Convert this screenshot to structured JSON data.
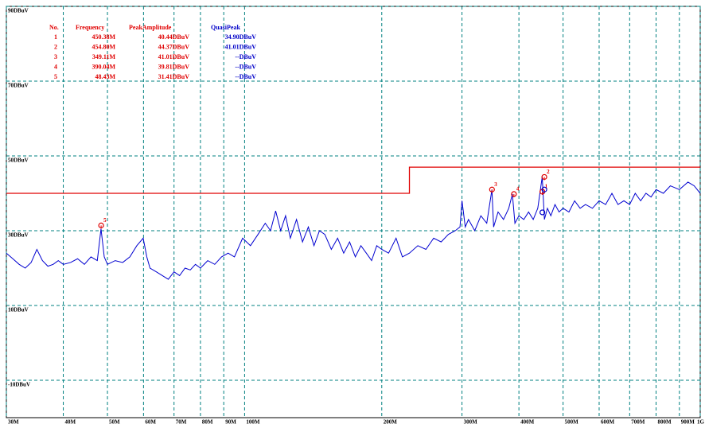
{
  "chart_data": {
    "type": "line",
    "xscale": "log",
    "xlim": [
      30,
      1000
    ],
    "ylim": [
      -20,
      90
    ],
    "xticks": [
      {
        "value": 30,
        "label": "30M"
      },
      {
        "value": 40,
        "label": "40M"
      },
      {
        "value": 50,
        "label": "50M"
      },
      {
        "value": 60,
        "label": "60M"
      },
      {
        "value": 70,
        "label": "70M"
      },
      {
        "value": 80,
        "label": "80M"
      },
      {
        "value": 90,
        "label": "90M"
      },
      {
        "value": 100,
        "label": "100M"
      },
      {
        "value": 200,
        "label": "200M"
      },
      {
        "value": 300,
        "label": "300M"
      },
      {
        "value": 400,
        "label": "400M"
      },
      {
        "value": 500,
        "label": "500M"
      },
      {
        "value": 600,
        "label": "600M"
      },
      {
        "value": 700,
        "label": "700M"
      },
      {
        "value": 800,
        "label": "800M"
      },
      {
        "value": 900,
        "label": "900M"
      },
      {
        "value": 1000,
        "label": "1G"
      }
    ],
    "yticks": [
      {
        "value": 90,
        "label": "90DBuV"
      },
      {
        "value": 70,
        "label": "70DBuV"
      },
      {
        "value": 50,
        "label": "50DBuV"
      },
      {
        "value": 30,
        "label": "30DBuV"
      },
      {
        "value": 10,
        "label": "10DBuV"
      },
      {
        "value": -10,
        "label": "-10DBuV"
      }
    ],
    "grid": true,
    "grid_color": "#008080",
    "limit": {
      "color": "#e00000",
      "x": [
        30,
        230,
        230,
        1000
      ],
      "values": [
        40,
        40,
        47,
        47
      ]
    },
    "series": [
      {
        "color": "#0000d0",
        "x": [
          30,
          31,
          32,
          33,
          34,
          35,
          36,
          37,
          38,
          39,
          40,
          41.5,
          43,
          44.5,
          46,
          47.5,
          48.4,
          49.2,
          50,
          52,
          54,
          56,
          58,
          59.9,
          61,
          62,
          64,
          66,
          68,
          70,
          72,
          74,
          76,
          78,
          80,
          83,
          86,
          89,
          92,
          95,
          99,
          103,
          107,
          111,
          114,
          117,
          120,
          123,
          126,
          130,
          134,
          138,
          142,
          146,
          150,
          155,
          160,
          165,
          170,
          175,
          180,
          185,
          190,
          195,
          200,
          207,
          215,
          222,
          230,
          240,
          250,
          260,
          270,
          280,
          290,
          297,
          300,
          305,
          310,
          320,
          330,
          340,
          349,
          352,
          360,
          370,
          380,
          387,
          392,
          400,
          410,
          420,
          430,
          440,
          450,
          455,
          462,
          470,
          480,
          490,
          500,
          515,
          530,
          545,
          560,
          580,
          600,
          620,
          640,
          660,
          680,
          700,
          720,
          740,
          760,
          780,
          800,
          830,
          860,
          900,
          940,
          970,
          1000
        ],
        "values": [
          24,
          22.5,
          21,
          20,
          21.5,
          25,
          22,
          20.5,
          21,
          22,
          21,
          21.5,
          22.5,
          21,
          23,
          22,
          30.5,
          23,
          21,
          22,
          21.5,
          23,
          26,
          28,
          23,
          20,
          19,
          18,
          17,
          19,
          18,
          20,
          19.5,
          21,
          20,
          22,
          21,
          23,
          24,
          23,
          28,
          26,
          29,
          32,
          30,
          35.3,
          30,
          34,
          28,
          33,
          27,
          31,
          26,
          30,
          29,
          25,
          28,
          24,
          27,
          23,
          26,
          24,
          22,
          26,
          25,
          24,
          28,
          23,
          24,
          26,
          25,
          28,
          27,
          29,
          30,
          31,
          38,
          31,
          33,
          30,
          34,
          32,
          41,
          31,
          35,
          33,
          36,
          39.8,
          32,
          34,
          33,
          35,
          33,
          36,
          44.4,
          33,
          36,
          34,
          37,
          35,
          36,
          35,
          38,
          36,
          37,
          36,
          38,
          37,
          40,
          37,
          38,
          37,
          40,
          38,
          40,
          39,
          41,
          40,
          42,
          41,
          43,
          42,
          40
        ]
      }
    ],
    "table_header": [
      "No.",
      "Frequency",
      "PeakAmplitude",
      "QuasiPeak"
    ],
    "markers": [
      {
        "no": "1",
        "freq": 450.38,
        "freq_label": "450.38M",
        "peak": 40.44,
        "peak_label": "40.44DBuV",
        "qp": 34.9,
        "qp_label": "34.90DBuV"
      },
      {
        "no": "2",
        "freq": 454.8,
        "freq_label": "454.80M",
        "peak": 44.37,
        "peak_label": "44.37DBuV",
        "qp": 41.01,
        "qp_label": "41.01DBuV"
      },
      {
        "no": "3",
        "freq": 349.11,
        "freq_label": "349.11M",
        "peak": 41.01,
        "peak_label": "41.01DBuV",
        "qp": null,
        "qp_label": "--DBuV"
      },
      {
        "no": "4",
        "freq": 390.04,
        "freq_label": "390.04M",
        "peak": 39.81,
        "peak_label": "39.81DBuV",
        "qp": null,
        "qp_label": "--DBuV"
      },
      {
        "no": "5",
        "freq": 48.43,
        "freq_label": "48.43M",
        "peak": 31.41,
        "peak_label": "31.41DBuV",
        "qp": null,
        "qp_label": "--DBuV"
      }
    ]
  }
}
